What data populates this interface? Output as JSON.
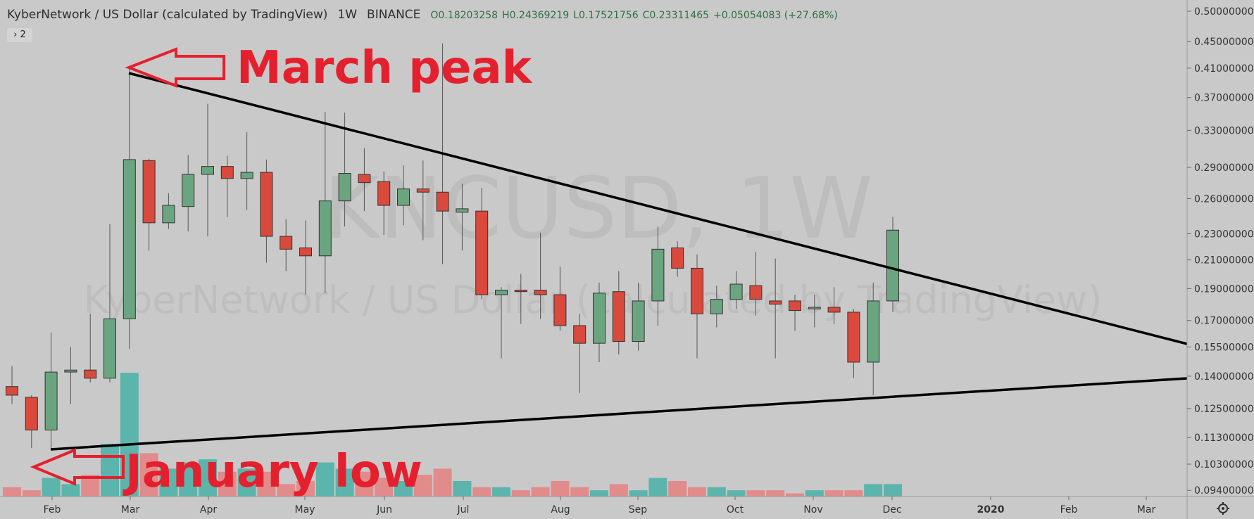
{
  "header": {
    "symbol": "KyberNetwork / US Dollar (calculated by TradingView)",
    "interval": "1W",
    "exchange": "BINANCE",
    "open": "O0.18203258",
    "high": "H0.24369219",
    "low": "L0.17521756",
    "close": "C0.23311465",
    "change": "+0.05054083 (+27.68%)",
    "collapse_badge": "› 2"
  },
  "watermark": {
    "ticker": "KNCUSD, 1W",
    "name": "KyberNetwork / US Dollar (calculated by TradingView)"
  },
  "annotations": {
    "peak": "March peak",
    "low": "January low"
  },
  "colors": {
    "bg": "#c9c9c9",
    "up": "#6aa580",
    "down": "#d94a3d",
    "annotation": "#e5202e",
    "trendline": "#000000"
  },
  "settings_icon": "gear-icon",
  "chart_data": {
    "type": "candlestick",
    "scale": "log",
    "ylim": [
      0.092,
      0.52
    ],
    "y_ticks": [
      "0.50000000",
      "0.45000000",
      "0.41000000",
      "0.37000000",
      "0.33000000",
      "0.29000000",
      "0.26000000",
      "0.23000000",
      "0.21000000",
      "0.19000000",
      "0.17000000",
      "0.15500000",
      "0.14000000",
      "0.12500000",
      "0.11300000",
      "0.10300000",
      "0.09400000"
    ],
    "x_ticks": [
      "Feb",
      "Mar",
      "Apr",
      "May",
      "Jun",
      "Jul",
      "Aug",
      "Sep",
      "Oct",
      "Nov",
      "Dec",
      "2020",
      "Feb",
      "Mar"
    ],
    "candles": [
      {
        "o": 0.135,
        "h": 0.145,
        "l": 0.127,
        "c": 0.131
      },
      {
        "o": 0.13,
        "h": 0.131,
        "l": 0.109,
        "c": 0.116
      },
      {
        "o": 0.116,
        "h": 0.163,
        "l": 0.109,
        "c": 0.142
      },
      {
        "o": 0.142,
        "h": 0.155,
        "l": 0.127,
        "c": 0.143
      },
      {
        "o": 0.143,
        "h": 0.174,
        "l": 0.137,
        "c": 0.139
      },
      {
        "o": 0.139,
        "h": 0.238,
        "l": 0.137,
        "c": 0.171
      },
      {
        "o": 0.171,
        "h": 0.41,
        "l": 0.154,
        "c": 0.298
      },
      {
        "o": 0.297,
        "h": 0.299,
        "l": 0.217,
        "c": 0.239
      },
      {
        "o": 0.239,
        "h": 0.265,
        "l": 0.234,
        "c": 0.254
      },
      {
        "o": 0.253,
        "h": 0.303,
        "l": 0.232,
        "c": 0.283
      },
      {
        "o": 0.283,
        "h": 0.362,
        "l": 0.228,
        "c": 0.291
      },
      {
        "o": 0.291,
        "h": 0.302,
        "l": 0.244,
        "c": 0.279
      },
      {
        "o": 0.279,
        "h": 0.328,
        "l": 0.25,
        "c": 0.285
      },
      {
        "o": 0.285,
        "h": 0.298,
        "l": 0.208,
        "c": 0.228
      },
      {
        "o": 0.228,
        "h": 0.242,
        "l": 0.202,
        "c": 0.218
      },
      {
        "o": 0.219,
        "h": 0.241,
        "l": 0.186,
        "c": 0.213
      },
      {
        "o": 0.213,
        "h": 0.352,
        "l": 0.187,
        "c": 0.258
      },
      {
        "o": 0.258,
        "h": 0.351,
        "l": 0.236,
        "c": 0.284
      },
      {
        "o": 0.283,
        "h": 0.31,
        "l": 0.249,
        "c": 0.275
      },
      {
        "o": 0.276,
        "h": 0.286,
        "l": 0.229,
        "c": 0.254
      },
      {
        "o": 0.254,
        "h": 0.292,
        "l": 0.237,
        "c": 0.269
      },
      {
        "o": 0.269,
        "h": 0.297,
        "l": 0.225,
        "c": 0.266
      },
      {
        "o": 0.266,
        "h": 0.447,
        "l": 0.207,
        "c": 0.249
      },
      {
        "o": 0.248,
        "h": 0.274,
        "l": 0.217,
        "c": 0.251
      },
      {
        "o": 0.249,
        "h": 0.27,
        "l": 0.183,
        "c": 0.186
      },
      {
        "o": 0.186,
        "h": 0.191,
        "l": 0.149,
        "c": 0.189
      },
      {
        "o": 0.189,
        "h": 0.2,
        "l": 0.168,
        "c": 0.188
      },
      {
        "o": 0.189,
        "h": 0.231,
        "l": 0.171,
        "c": 0.186
      },
      {
        "o": 0.186,
        "h": 0.205,
        "l": 0.164,
        "c": 0.167
      },
      {
        "o": 0.167,
        "h": 0.174,
        "l": 0.132,
        "c": 0.157
      },
      {
        "o": 0.157,
        "h": 0.194,
        "l": 0.147,
        "c": 0.187
      },
      {
        "o": 0.188,
        "h": 0.202,
        "l": 0.151,
        "c": 0.158
      },
      {
        "o": 0.158,
        "h": 0.194,
        "l": 0.153,
        "c": 0.182
      },
      {
        "o": 0.182,
        "h": 0.236,
        "l": 0.167,
        "c": 0.218
      },
      {
        "o": 0.219,
        "h": 0.224,
        "l": 0.198,
        "c": 0.204
      },
      {
        "o": 0.204,
        "h": 0.214,
        "l": 0.149,
        "c": 0.174
      },
      {
        "o": 0.174,
        "h": 0.192,
        "l": 0.166,
        "c": 0.183
      },
      {
        "o": 0.183,
        "h": 0.202,
        "l": 0.177,
        "c": 0.193
      },
      {
        "o": 0.192,
        "h": 0.216,
        "l": 0.173,
        "c": 0.183
      },
      {
        "o": 0.182,
        "h": 0.211,
        "l": 0.149,
        "c": 0.18
      },
      {
        "o": 0.182,
        "h": 0.186,
        "l": 0.164,
        "c": 0.176
      },
      {
        "o": 0.177,
        "h": 0.186,
        "l": 0.166,
        "c": 0.178
      },
      {
        "o": 0.178,
        "h": 0.191,
        "l": 0.168,
        "c": 0.175
      },
      {
        "o": 0.175,
        "h": 0.177,
        "l": 0.139,
        "c": 0.147
      },
      {
        "o": 0.147,
        "h": 0.194,
        "l": 0.131,
        "c": 0.182
      },
      {
        "o": 0.182,
        "h": 0.244,
        "l": 0.175,
        "c": 0.233
      }
    ],
    "volume": [
      3,
      2,
      6,
      4,
      7,
      17,
      40,
      14,
      9,
      11,
      12,
      8,
      9,
      8,
      4,
      5,
      11,
      9,
      8,
      6,
      5,
      7,
      9,
      5,
      3,
      3,
      2,
      3,
      5,
      3,
      2,
      4,
      2,
      6,
      5,
      3,
      3,
      2,
      2,
      2,
      1,
      2,
      2,
      2,
      4,
      4
    ]
  }
}
